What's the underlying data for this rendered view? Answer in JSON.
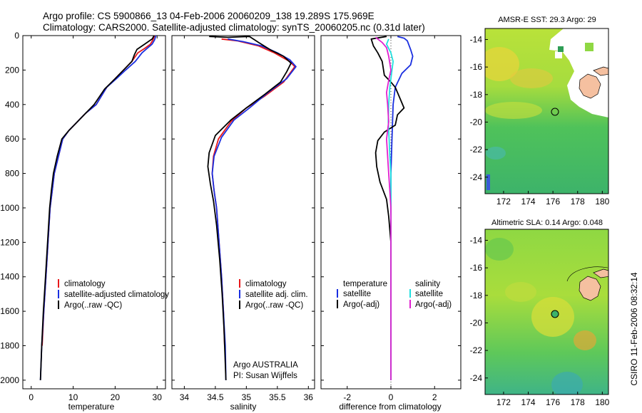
{
  "title": {
    "line1": "Argo profile: CS 5900866_13 04-Feb-2006 20060209_138 19.289S 175.969E",
    "line2": "Climatology: CARS2000. Satellite-adjusted climatology: synTS_20060205.nc (0.31d later)"
  },
  "colors": {
    "clim": "#e8181b",
    "sat": "#1a2fe0",
    "argo": "#000000",
    "cyan": "#20e0e0",
    "magenta": "#e020d0"
  },
  "chart_data": [
    {
      "type": "line",
      "name": "temperature-profile",
      "xlabel": "temperature",
      "ylabel": "",
      "xlim": [
        -2,
        32
      ],
      "ylim": [
        2050,
        0
      ],
      "xticks": [
        0,
        10,
        20,
        30
      ],
      "yticks": [
        0,
        200,
        400,
        600,
        800,
        1000,
        1200,
        1400,
        1600,
        1800,
        2000
      ],
      "series": [
        {
          "name": "climatology",
          "color": "clim",
          "points": [
            [
              29.4,
              0
            ],
            [
              29,
              25
            ],
            [
              28.4,
              50
            ],
            [
              27,
              75
            ],
            [
              25.4,
              100
            ],
            [
              24,
              150
            ],
            [
              22,
              200
            ],
            [
              20,
              250
            ],
            [
              18,
              300
            ],
            [
              15.5,
              400
            ],
            [
              13,
              450
            ],
            [
              11,
              500
            ],
            [
              9,
              550
            ],
            [
              7.5,
              600
            ],
            [
              6.5,
              700
            ],
            [
              5.5,
              800
            ],
            [
              5,
              900
            ],
            [
              4.5,
              1000
            ],
            [
              4,
              1200
            ],
            [
              3.5,
              1400
            ],
            [
              3,
              1600
            ],
            [
              2.6,
              1800
            ]
          ]
        },
        {
          "name": "satellite-adjusted climatology",
          "color": "sat",
          "points": [
            [
              29.7,
              0
            ],
            [
              29.4,
              25
            ],
            [
              28.8,
              50
            ],
            [
              27.6,
              75
            ],
            [
              26.4,
              100
            ],
            [
              24.8,
              150
            ],
            [
              22.5,
              200
            ],
            [
              20.3,
              250
            ],
            [
              18,
              300
            ],
            [
              15.5,
              400
            ],
            [
              13,
              450
            ],
            [
              11,
              500
            ],
            [
              9,
              550
            ],
            [
              7.5,
              600
            ],
            [
              6.5,
              700
            ],
            [
              5.5,
              800
            ],
            [
              5,
              900
            ],
            [
              4.5,
              1000
            ],
            [
              4,
              1200
            ],
            [
              3.5,
              1400
            ],
            [
              3,
              1600
            ],
            [
              2.5,
              1800
            ],
            [
              2.2,
              2000
            ]
          ]
        },
        {
          "name": "Argo(..raw -QC)",
          "color": "argo",
          "points": [
            [
              29.3,
              0
            ],
            [
              28.8,
              20
            ],
            [
              27,
              50
            ],
            [
              25.2,
              80
            ],
            [
              24.6,
              110
            ],
            [
              24,
              150
            ],
            [
              22,
              200
            ],
            [
              20,
              250
            ],
            [
              17.5,
              310
            ],
            [
              15,
              400
            ],
            [
              13,
              450
            ],
            [
              11,
              500
            ],
            [
              9,
              550
            ],
            [
              7.3,
              600
            ],
            [
              6.2,
              700
            ],
            [
              5.3,
              800
            ],
            [
              4.8,
              900
            ],
            [
              4.4,
              1000
            ],
            [
              3.9,
              1200
            ],
            [
              3.4,
              1400
            ],
            [
              2.9,
              1600
            ],
            [
              2.5,
              1800
            ],
            [
              2.2,
              2000
            ]
          ]
        }
      ],
      "legend": [
        "climatology",
        "satellite-adjusted climatology",
        "Argo(..raw -QC)"
      ]
    },
    {
      "type": "line",
      "name": "salinity-profile",
      "xlabel": "salinity",
      "ylabel": "",
      "xlim": [
        33.8,
        36.1
      ],
      "ylim": [
        2050,
        0
      ],
      "xticks": [
        34,
        34.5,
        35,
        35.5,
        36
      ],
      "series": [
        {
          "name": "climatology",
          "color": "clim",
          "points": [
            [
              34.6,
              20
            ],
            [
              34.85,
              30
            ],
            [
              35.2,
              60
            ],
            [
              35.45,
              100
            ],
            [
              35.7,
              150
            ],
            [
              35.78,
              180
            ],
            [
              35.6,
              270
            ],
            [
              35.3,
              350
            ],
            [
              35,
              420
            ],
            [
              34.75,
              500
            ],
            [
              34.55,
              600
            ],
            [
              34.47,
              700
            ],
            [
              34.45,
              800
            ],
            [
              34.48,
              900
            ],
            [
              34.52,
              1000
            ],
            [
              34.56,
              1200
            ],
            [
              34.6,
              1400
            ],
            [
              34.63,
              1600
            ],
            [
              34.65,
              1800
            ]
          ]
        },
        {
          "name": "satellite adj. clim.",
          "color": "sat",
          "points": [
            [
              34.7,
              20
            ],
            [
              34.95,
              35
            ],
            [
              35.25,
              60
            ],
            [
              35.5,
              100
            ],
            [
              35.7,
              140
            ],
            [
              35.8,
              180
            ],
            [
              35.65,
              250
            ],
            [
              35.35,
              330
            ],
            [
              35.05,
              420
            ],
            [
              34.8,
              490
            ],
            [
              34.6,
              590
            ],
            [
              34.48,
              700
            ],
            [
              34.45,
              800
            ],
            [
              34.48,
              900
            ],
            [
              34.52,
              1000
            ],
            [
              34.56,
              1200
            ],
            [
              34.6,
              1400
            ],
            [
              34.63,
              1600
            ],
            [
              34.66,
              1800
            ],
            [
              34.67,
              2000
            ]
          ]
        },
        {
          "name": "Argo(..raw -QC)",
          "color": "argo",
          "points": [
            [
              34.4,
              5
            ],
            [
              34.7,
              10
            ],
            [
              35.05,
              5
            ],
            [
              35.2,
              40
            ],
            [
              35.4,
              85
            ],
            [
              35.6,
              120
            ],
            [
              35.72,
              160
            ],
            [
              35.65,
              210
            ],
            [
              35.55,
              270
            ],
            [
              35.3,
              340
            ],
            [
              35,
              420
            ],
            [
              34.75,
              490
            ],
            [
              34.5,
              580
            ],
            [
              34.4,
              680
            ],
            [
              34.38,
              760
            ],
            [
              34.42,
              860
            ],
            [
              34.47,
              960
            ],
            [
              34.52,
              1100
            ],
            [
              34.57,
              1300
            ],
            [
              34.61,
              1500
            ],
            [
              34.64,
              1700
            ],
            [
              34.66,
              1900
            ],
            [
              34.67,
              2000
            ]
          ]
        }
      ],
      "legend": [
        "climatology",
        "satellite adj. clim.",
        "Argo(..raw -QC)"
      ],
      "annotation": [
        "Argo AUSTRALIA",
        "PI: Susan Wijffels"
      ]
    },
    {
      "type": "line",
      "name": "difference-profile",
      "xlabel": "difference from climatology",
      "ylabel": "",
      "xlim": [
        -3.2,
        3.2
      ],
      "ylim": [
        2050,
        0
      ],
      "xticks": [
        -2,
        0,
        2
      ],
      "series": [
        {
          "name": "temperature satellite",
          "color": "sat",
          "points": [
            [
              0.3,
              5
            ],
            [
              0.6,
              15
            ],
            [
              0.75,
              30
            ],
            [
              0.9,
              80
            ],
            [
              1,
              120
            ],
            [
              0.9,
              170
            ],
            [
              0.5,
              220
            ],
            [
              0.2,
              300
            ],
            [
              0.1,
              400
            ],
            [
              0.05,
              600
            ],
            [
              0,
              800
            ],
            [
              0,
              1000
            ],
            [
              0,
              1400
            ],
            [
              0,
              2000
            ]
          ]
        },
        {
          "name": "temperature Argo(-adj)",
          "color": "argo",
          "points": [
            [
              -0.2,
              5
            ],
            [
              -0.9,
              20
            ],
            [
              -0.8,
              60
            ],
            [
              -0.6,
              100
            ],
            [
              -0.4,
              150
            ],
            [
              -0.3,
              230
            ],
            [
              0,
              270
            ],
            [
              0.2,
              300
            ],
            [
              0.4,
              360
            ],
            [
              0.6,
              420
            ],
            [
              0.3,
              460
            ],
            [
              0.2,
              520
            ],
            [
              -0.3,
              560
            ],
            [
              -0.6,
              610
            ],
            [
              -0.7,
              680
            ],
            [
              -0.65,
              760
            ],
            [
              -0.5,
              850
            ],
            [
              -0.2,
              950
            ],
            [
              -0.1,
              1050
            ],
            [
              0,
              1200
            ],
            [
              0,
              1600
            ],
            [
              0,
              2000
            ]
          ]
        },
        {
          "name": "salinity satellite",
          "color": "cyan",
          "points": [
            [
              -0.1,
              20
            ],
            [
              -0.2,
              50
            ],
            [
              0,
              100
            ],
            [
              0.1,
              150
            ],
            [
              0.05,
              200
            ],
            [
              -0.05,
              300
            ],
            [
              -0.1,
              400
            ],
            [
              -0.12,
              500
            ],
            [
              -0.08,
              600
            ],
            [
              -0.05,
              700
            ],
            [
              0,
              800
            ],
            [
              0,
              1000
            ],
            [
              0,
              1400
            ],
            [
              0,
              2000
            ]
          ]
        },
        {
          "name": "salinity Argo(-adj)",
          "color": "magenta",
          "points": [
            [
              -0.7,
              10
            ],
            [
              -0.4,
              40
            ],
            [
              -0.2,
              70
            ],
            [
              -0.1,
              120
            ],
            [
              0,
              200
            ],
            [
              -0.1,
              260
            ],
            [
              -0.2,
              330
            ],
            [
              -0.15,
              400
            ],
            [
              -0.1,
              500
            ],
            [
              -0.2,
              600
            ],
            [
              -0.15,
              700
            ],
            [
              -0.1,
              800
            ],
            [
              -0.05,
              900
            ],
            [
              0,
              1000
            ],
            [
              0,
              1400
            ],
            [
              0,
              2000
            ]
          ]
        }
      ],
      "legend_titles": [
        "temperature",
        "salinity"
      ],
      "legend": [
        "satellite",
        "Argo(-adj)",
        "satellite",
        "Argo(-adj)"
      ]
    },
    {
      "type": "heatmap",
      "name": "amsr-e-sst-map",
      "title": "AMSR-E SST: 29.3 Argo: 29",
      "xlim": [
        170.5,
        180.5
      ],
      "ylim": [
        -25.2,
        -13.2
      ],
      "xticks": [
        172,
        174,
        176,
        178,
        180
      ],
      "yticks": [
        -14,
        -16,
        -18,
        -20,
        -22,
        -24
      ],
      "marker": [
        175.969,
        -19.289
      ]
    },
    {
      "type": "heatmap",
      "name": "altimetric-sla-map",
      "title": "Altimetric SLA: 0.14 Argo: 0.048",
      "xlim": [
        170.5,
        180.5
      ],
      "ylim": [
        -25.2,
        -13.2
      ],
      "xticks": [
        172,
        174,
        176,
        178,
        180
      ],
      "yticks": [
        -14,
        -16,
        -18,
        -20,
        -22,
        -24
      ],
      "marker": [
        175.969,
        -19.289
      ]
    }
  ],
  "credit": "CSIRO 11-Feb-2006 08:32:14"
}
